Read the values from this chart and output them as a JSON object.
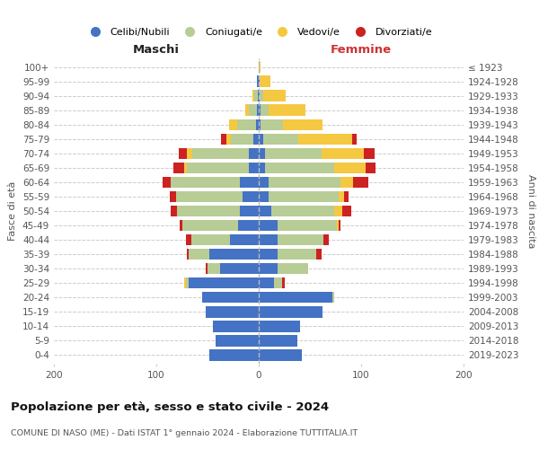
{
  "age_groups": [
    "0-4",
    "5-9",
    "10-14",
    "15-19",
    "20-24",
    "25-29",
    "30-34",
    "35-39",
    "40-44",
    "45-49",
    "50-54",
    "55-59",
    "60-64",
    "65-69",
    "70-74",
    "75-79",
    "80-84",
    "85-89",
    "90-94",
    "95-99",
    "100+"
  ],
  "birth_years": [
    "2019-2023",
    "2014-2018",
    "2009-2013",
    "2004-2008",
    "1999-2003",
    "1994-1998",
    "1989-1993",
    "1984-1988",
    "1979-1983",
    "1974-1978",
    "1969-1973",
    "1964-1968",
    "1959-1963",
    "1954-1958",
    "1949-1953",
    "1944-1948",
    "1939-1943",
    "1934-1938",
    "1929-1933",
    "1924-1928",
    "≤ 1923"
  ],
  "colors": {
    "celibe": "#4472c4",
    "coniugato": "#b8cc96",
    "vedovo": "#f5c842",
    "divorziato": "#cc2222"
  },
  "maschi": {
    "celibe": [
      48,
      42,
      45,
      52,
      55,
      68,
      38,
      48,
      28,
      20,
      18,
      16,
      18,
      10,
      10,
      5,
      3,
      2,
      1,
      2,
      0
    ],
    "coniugato": [
      0,
      0,
      0,
      0,
      0,
      3,
      12,
      20,
      38,
      55,
      62,
      65,
      68,
      60,
      55,
      22,
      18,
      8,
      3,
      0,
      0
    ],
    "vedovo": [
      0,
      0,
      0,
      0,
      0,
      2,
      0,
      0,
      0,
      0,
      0,
      0,
      0,
      3,
      5,
      5,
      8,
      3,
      2,
      0,
      0
    ],
    "divorziato": [
      0,
      0,
      0,
      0,
      0,
      0,
      2,
      2,
      5,
      2,
      6,
      6,
      8,
      10,
      8,
      5,
      0,
      0,
      0,
      0,
      0
    ]
  },
  "femmine": {
    "celibe": [
      42,
      38,
      40,
      62,
      72,
      15,
      18,
      18,
      18,
      18,
      12,
      10,
      10,
      6,
      6,
      4,
      2,
      2,
      1,
      1,
      0
    ],
    "coniugato": [
      0,
      0,
      0,
      0,
      2,
      8,
      30,
      38,
      45,
      58,
      62,
      68,
      70,
      68,
      55,
      35,
      22,
      8,
      3,
      0,
      0
    ],
    "vedovo": [
      0,
      0,
      0,
      0,
      0,
      0,
      0,
      0,
      0,
      2,
      8,
      5,
      12,
      30,
      42,
      52,
      38,
      36,
      22,
      10,
      2
    ],
    "divorziato": [
      0,
      0,
      0,
      0,
      0,
      2,
      0,
      5,
      5,
      2,
      8,
      5,
      15,
      10,
      10,
      5,
      0,
      0,
      0,
      0,
      0
    ]
  },
  "xlim": 200,
  "title": "Popolazione per età, sesso e stato civile - 2024",
  "subtitle": "COMUNE DI NASO (ME) - Dati ISTAT 1° gennaio 2024 - Elaborazione TUTTITALIA.IT",
  "ylabel_left": "Fasce di età",
  "ylabel_right": "Anni di nascita",
  "xlabel_left": "Maschi",
  "xlabel_right": "Femmine",
  "bg_color": "#ffffff",
  "grid_color": "#cccccc",
  "legend_labels": [
    "Celibi/Nubili",
    "Coniugati/e",
    "Vedovi/e",
    "Divorziati/e"
  ]
}
